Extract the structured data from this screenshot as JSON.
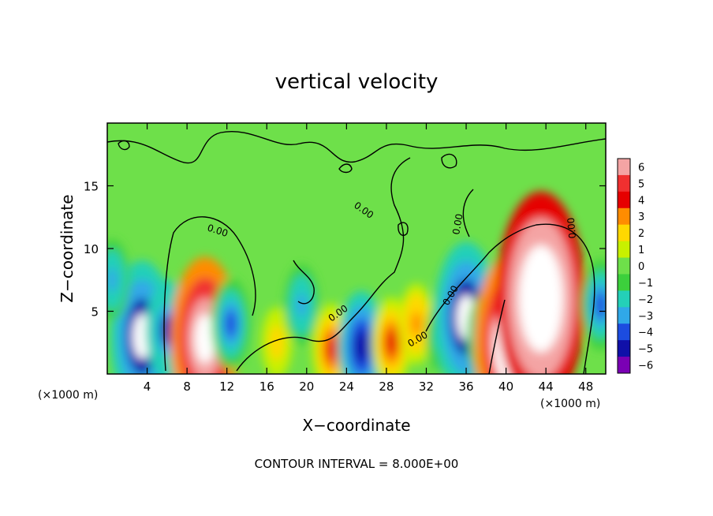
{
  "chart_data": {
    "type": "heatmap",
    "title": "vertical velocity",
    "xlabel": "X−coordinate",
    "ylabel": "Z−coordinate",
    "x_unit_left": "(×1000 m)",
    "x_unit_right": "(×1000 m)",
    "footer": "CONTOUR INTERVAL = 8.000E+00",
    "xlim": [
      0,
      50
    ],
    "ylim": [
      0,
      20
    ],
    "xticks": [
      4,
      8,
      12,
      16,
      20,
      24,
      28,
      32,
      36,
      40,
      44,
      48
    ],
    "yticks": [
      5,
      10,
      15
    ],
    "xtick_labels": [
      "4",
      "8",
      "12",
      "16",
      "20",
      "24",
      "28",
      "32",
      "36",
      "40",
      "44",
      "48"
    ],
    "ytick_labels": [
      "5",
      "10",
      "15"
    ],
    "colorbar": {
      "range": [
        -6,
        6
      ],
      "labels": [
        "6",
        "5",
        "4",
        "3",
        "2",
        "1",
        "0",
        "−1",
        "−2",
        "−3",
        "−4",
        "−5",
        "−6"
      ],
      "colors": [
        "#f4a4a4",
        "#f03030",
        "#e60000",
        "#ff8c00",
        "#ffd800",
        "#c8f000",
        "#6ee04a",
        "#3cd03c",
        "#24d0b8",
        "#30a8e8",
        "#1c4ce0",
        "#1010a8",
        "#7a00b4"
      ]
    },
    "contour_labels": [
      "0.00",
      "0.00",
      "0.00",
      "0.00",
      "0.00",
      "0.00",
      "0.00"
    ],
    "features": [
      {
        "x": 3.5,
        "z": 3.0,
        "w": -7
      },
      {
        "x": 6.0,
        "z": 3.5,
        "w": -5
      },
      {
        "x": 9.8,
        "z": 2.8,
        "w": 8
      },
      {
        "x": 12.4,
        "z": 4.0,
        "w": -4
      },
      {
        "x": 17.0,
        "z": 2.5,
        "w": 2
      },
      {
        "x": 19.5,
        "z": 5.5,
        "w": -3
      },
      {
        "x": 22.5,
        "z": 2.0,
        "w": 4
      },
      {
        "x": 25.5,
        "z": 2.2,
        "w": -6
      },
      {
        "x": 28.5,
        "z": 2.5,
        "w": 4
      },
      {
        "x": 31.0,
        "z": 4.0,
        "w": 3
      },
      {
        "x": 33.5,
        "z": 3.0,
        "w": -2
      },
      {
        "x": 36.0,
        "z": 4.5,
        "w": -7
      },
      {
        "x": 38.0,
        "z": 3.0,
        "w": -4
      },
      {
        "x": 40.5,
        "z": 2.5,
        "w": 9
      },
      {
        "x": 43.5,
        "z": 6.0,
        "w": 12
      },
      {
        "x": 49.5,
        "z": 5.5,
        "w": -4
      },
      {
        "x": 0.5,
        "z": 7.5,
        "w": -3
      }
    ]
  }
}
